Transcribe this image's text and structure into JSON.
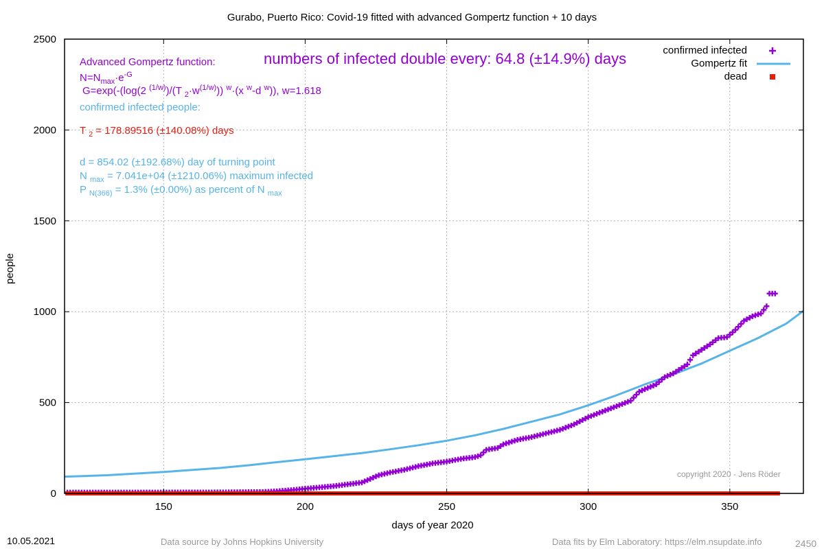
{
  "chart_data": {
    "type": "scatter",
    "title": "Gurabo,  Puerto Rico: Covid-19 fitted with advanced Gompertz function + 10 days",
    "xlabel": "days of year 2020",
    "ylabel": "people",
    "xlim": [
      115,
      376
    ],
    "ylim": [
      0,
      2500
    ],
    "x_ticks": [
      150,
      200,
      250,
      300,
      350
    ],
    "y_ticks": [
      0,
      500,
      1000,
      1500,
      2000,
      2500
    ],
    "grid": true,
    "legend_placement": "top-right",
    "colors": {
      "confirmed": "#9400d3",
      "fit": "#56b4e9",
      "dead": "#e51e10"
    },
    "series": [
      {
        "name": "confirmed infected",
        "marker": "plus",
        "points": [
          [
            116,
            5
          ],
          [
            140,
            5
          ],
          [
            170,
            6
          ],
          [
            185,
            8
          ],
          [
            190,
            12
          ],
          [
            195,
            18
          ],
          [
            200,
            26
          ],
          [
            205,
            33
          ],
          [
            210,
            40
          ],
          [
            215,
            50
          ],
          [
            220,
            60
          ],
          [
            223,
            80
          ],
          [
            226,
            100
          ],
          [
            230,
            115
          ],
          [
            235,
            130
          ],
          [
            240,
            150
          ],
          [
            245,
            165
          ],
          [
            250,
            175
          ],
          [
            255,
            190
          ],
          [
            260,
            200
          ],
          [
            262,
            210
          ],
          [
            264,
            240
          ],
          [
            268,
            250
          ],
          [
            270,
            270
          ],
          [
            275,
            295
          ],
          [
            280,
            310
          ],
          [
            285,
            330
          ],
          [
            290,
            350
          ],
          [
            295,
            380
          ],
          [
            300,
            420
          ],
          [
            305,
            450
          ],
          [
            310,
            480
          ],
          [
            315,
            510
          ],
          [
            318,
            560
          ],
          [
            321,
            580
          ],
          [
            324,
            600
          ],
          [
            327,
            640
          ],
          [
            330,
            660
          ],
          [
            333,
            690
          ],
          [
            335,
            710
          ],
          [
            337,
            760
          ],
          [
            340,
            790
          ],
          [
            343,
            820
          ],
          [
            346,
            855
          ],
          [
            349,
            860
          ],
          [
            352,
            900
          ],
          [
            355,
            950
          ],
          [
            358,
            975
          ],
          [
            361,
            990
          ],
          [
            363,
            1030
          ],
          [
            364,
            1100
          ],
          [
            365,
            1100
          ],
          [
            366,
            1100
          ]
        ]
      },
      {
        "name": "Gompertz fit",
        "marker": "line",
        "points": [
          [
            115,
            92
          ],
          [
            130,
            100
          ],
          [
            150,
            118
          ],
          [
            170,
            140
          ],
          [
            180,
            155
          ],
          [
            190,
            172
          ],
          [
            200,
            188
          ],
          [
            210,
            205
          ],
          [
            220,
            222
          ],
          [
            230,
            243
          ],
          [
            240,
            265
          ],
          [
            250,
            290
          ],
          [
            260,
            320
          ],
          [
            270,
            355
          ],
          [
            280,
            395
          ],
          [
            290,
            435
          ],
          [
            300,
            485
          ],
          [
            310,
            540
          ],
          [
            320,
            600
          ],
          [
            330,
            655
          ],
          [
            340,
            715
          ],
          [
            350,
            785
          ],
          [
            360,
            855
          ],
          [
            370,
            935
          ],
          [
            376,
            1005
          ]
        ]
      },
      {
        "name": "dead",
        "marker": "square",
        "points": [
          [
            116,
            0
          ],
          [
            367,
            0
          ]
        ]
      }
    ],
    "annotations": {
      "doubling": "numbers of infected double every: 64.8 (±14.9%) days",
      "formula_title": "Advanced Gompertz function:",
      "formula_n": [
        "N=N",
        "max",
        "·e",
        "-G"
      ],
      "formula_g": [
        "G=exp(-(log(2 ",
        "(1/w)",
        ")/(T ",
        "2",
        "·w",
        "(1/w)",
        ")) ",
        "w",
        "·(x ",
        "w",
        "-d ",
        "w",
        ")), w=1.618"
      ],
      "confirmed_label": "confirmed infected people:",
      "t2": [
        "T ",
        "2",
        " = 178.89516 (±140.08%) days"
      ],
      "d": "d = 854.02 (±192.68%) day of turning point",
      "nmax": [
        "N ",
        "max",
        " = 7.041e+04 (±1210.06%) maximum infected"
      ],
      "pn": [
        "P ",
        "N(366)",
        " = 1.3% (±0.00%) as percent of N ",
        "max"
      ]
    }
  },
  "footer": {
    "date": "10.05.2021",
    "source": "Data source by Johns Hopkins University",
    "fits": "Data fits by Elm Laboratory: https://elm.nsupdate.info",
    "copyright": "copyright 2020 - Jens Röder",
    "code": "2450"
  }
}
